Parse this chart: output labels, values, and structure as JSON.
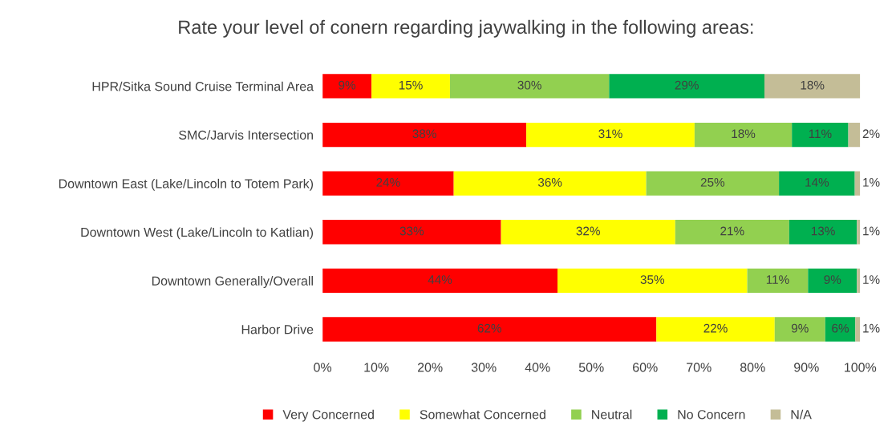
{
  "chart_data": {
    "type": "bar",
    "orientation": "horizontal",
    "stacked": true,
    "title": "Rate your level of conern regarding jaywalking in the following areas:",
    "categories": [
      "HPR/Sitka Sound Cruise Terminal Area",
      "SMC/Jarvis Intersection",
      "Downtown East (Lake/Lincoln to Totem Park)",
      "Downtown West (Lake/Lincoln to Katlian)",
      "Downtown Generally/Overall",
      "Harbor Drive"
    ],
    "series": [
      {
        "name": "Very Concerned",
        "color": "#ff0000",
        "values": [
          9.1,
          37.9,
          24.4,
          33.2,
          43.7,
          62.1
        ],
        "value_labels": [
          "9%",
          "38%",
          "24%",
          "33%",
          "44%",
          "62%"
        ]
      },
      {
        "name": "Somewhat Concerned",
        "color": "#ffff00",
        "values": [
          14.6,
          31.3,
          35.8,
          32.4,
          35.3,
          22.0
        ],
        "value_labels": [
          "15%",
          "31%",
          "36%",
          "32%",
          "35%",
          "22%"
        ]
      },
      {
        "name": "Neutral",
        "color": "#92d050",
        "values": [
          29.6,
          18.1,
          24.7,
          21.2,
          11.3,
          9.4
        ],
        "value_labels": [
          "30%",
          "18%",
          "25%",
          "21%",
          "11%",
          "9%"
        ]
      },
      {
        "name": "No Concern",
        "color": "#00b050",
        "values": [
          28.9,
          10.5,
          14.1,
          12.6,
          9.1,
          5.6
        ],
        "value_labels": [
          "29%",
          "11%",
          "14%",
          "13%",
          "9%",
          "6%"
        ]
      },
      {
        "name": "N/A",
        "color": "#c4bd97",
        "values": [
          17.8,
          2.2,
          1.0,
          0.6,
          0.6,
          0.9
        ],
        "value_labels": [
          "18%",
          "2%",
          "1%",
          "1%",
          "1%",
          "1%"
        ]
      }
    ],
    "xlim": [
      0,
      100
    ],
    "xticks": [
      {
        "value": 0,
        "label": "0%"
      },
      {
        "value": 10,
        "label": "10%"
      },
      {
        "value": 20,
        "label": "20%"
      },
      {
        "value": 30,
        "label": "30%"
      },
      {
        "value": 40,
        "label": "40%"
      },
      {
        "value": 50,
        "label": "50%"
      },
      {
        "value": 60,
        "label": "60%"
      },
      {
        "value": 70,
        "label": "70%"
      },
      {
        "value": 80,
        "label": "80%"
      },
      {
        "value": 90,
        "label": "90%"
      },
      {
        "value": 100,
        "label": "100%"
      }
    ],
    "grid": false,
    "legend": "bottom"
  }
}
